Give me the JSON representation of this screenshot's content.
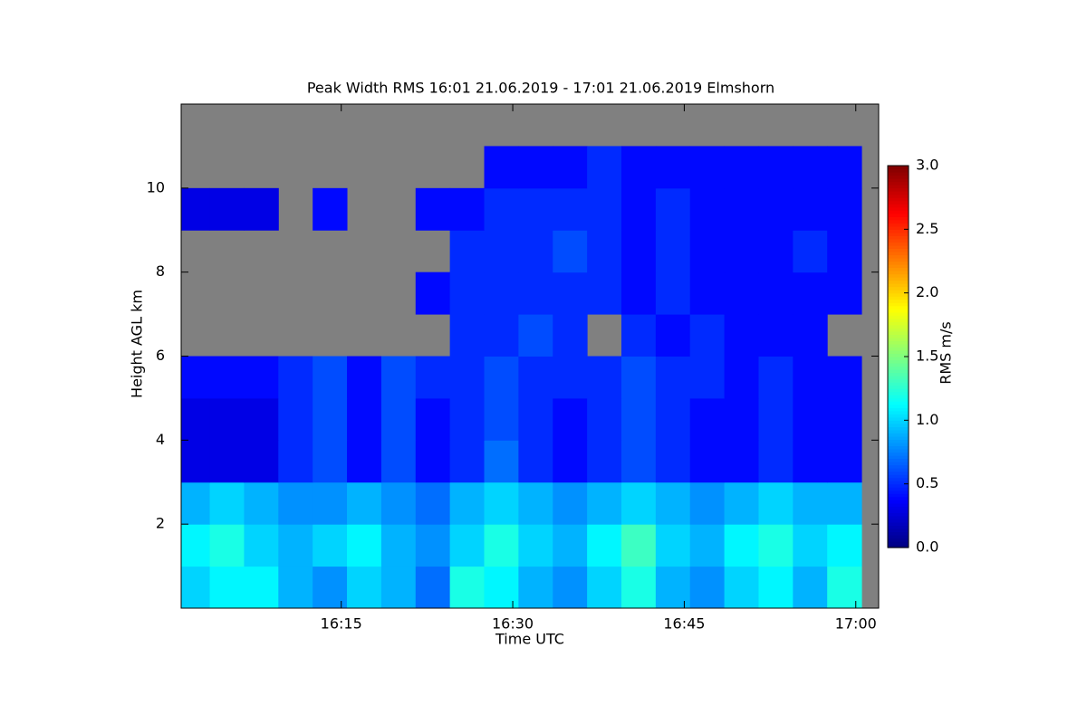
{
  "chart_data": {
    "type": "heatmap",
    "title": "Peak Width RMS   16:01 21.06.2019 - 17:01 21.06.2019 Elmshorn",
    "x_label": "Time UTC",
    "y_label": "Height AGL km",
    "colorbar_label": "RMS m/s",
    "x": [
      "16:02",
      "16:05",
      "16:08",
      "16:11",
      "16:14",
      "16:17",
      "16:20",
      "16:23",
      "16:26",
      "16:29",
      "16:32",
      "16:35",
      "16:38",
      "16:41",
      "16:44",
      "16:47",
      "16:50",
      "16:53",
      "16:56",
      "16:59"
    ],
    "y": [
      0.5,
      1.5,
      2.5,
      3.5,
      4.5,
      5.5,
      6.5,
      7.5,
      8.5,
      9.5,
      10.5,
      11.5
    ],
    "z": [
      [
        1.0,
        1.1,
        1.1,
        0.9,
        0.8,
        1.0,
        0.9,
        0.7,
        1.2,
        1.1,
        0.9,
        0.8,
        1.0,
        1.2,
        0.9,
        0.8,
        1.0,
        1.1,
        0.9,
        1.2
      ],
      [
        1.1,
        1.2,
        1.0,
        0.9,
        1.0,
        1.1,
        0.9,
        0.8,
        1.0,
        1.2,
        1.0,
        0.9,
        1.1,
        1.3,
        1.0,
        0.9,
        1.1,
        1.2,
        1.0,
        1.1
      ],
      [
        0.9,
        1.0,
        0.9,
        0.8,
        0.8,
        0.9,
        0.8,
        0.7,
        0.9,
        1.0,
        0.9,
        0.8,
        0.9,
        1.0,
        0.9,
        0.8,
        0.9,
        1.0,
        0.9,
        0.9
      ],
      [
        0.3,
        0.3,
        0.3,
        0.5,
        0.6,
        0.4,
        0.6,
        0.4,
        0.5,
        0.7,
        0.5,
        0.4,
        0.5,
        0.6,
        0.5,
        0.4,
        0.4,
        0.5,
        0.4,
        0.4
      ],
      [
        0.3,
        0.3,
        0.3,
        0.5,
        0.6,
        0.4,
        0.6,
        0.4,
        0.5,
        0.6,
        0.5,
        0.4,
        0.5,
        0.6,
        0.5,
        0.4,
        0.4,
        0.5,
        0.4,
        0.4
      ],
      [
        0.4,
        0.4,
        0.4,
        0.5,
        0.6,
        0.4,
        0.6,
        0.5,
        0.5,
        0.6,
        0.5,
        0.5,
        0.5,
        0.6,
        0.5,
        0.5,
        0.4,
        0.5,
        0.4,
        0.4
      ],
      [
        null,
        null,
        null,
        null,
        null,
        null,
        null,
        null,
        0.5,
        0.5,
        0.6,
        0.5,
        null,
        0.5,
        0.4,
        0.5,
        0.4,
        0.4,
        0.4,
        null
      ],
      [
        null,
        null,
        null,
        null,
        null,
        null,
        null,
        0.4,
        0.5,
        0.5,
        0.5,
        0.5,
        0.5,
        0.4,
        0.5,
        0.4,
        0.4,
        0.4,
        0.4,
        0.4
      ],
      [
        null,
        null,
        null,
        null,
        null,
        null,
        null,
        null,
        0.5,
        0.5,
        0.5,
        0.6,
        0.5,
        0.4,
        0.5,
        0.4,
        0.4,
        0.4,
        0.5,
        0.4
      ],
      [
        0.3,
        0.3,
        0.3,
        null,
        0.4,
        null,
        null,
        0.4,
        0.4,
        0.5,
        0.5,
        0.5,
        0.5,
        0.4,
        0.5,
        0.4,
        0.4,
        0.4,
        0.4,
        0.4
      ],
      [
        null,
        null,
        null,
        null,
        null,
        null,
        null,
        null,
        null,
        0.4,
        0.4,
        0.4,
        0.5,
        0.4,
        0.4,
        0.4,
        0.4,
        0.4,
        0.4,
        0.4
      ],
      [
        null,
        null,
        null,
        null,
        null,
        null,
        null,
        null,
        null,
        null,
        null,
        null,
        null,
        null,
        null,
        null,
        null,
        null,
        null,
        null
      ]
    ],
    "xlim": [
      "16:01",
      "17:02"
    ],
    "xticks": [
      "16:15",
      "16:30",
      "16:45",
      "17:00"
    ],
    "ylim": [
      0,
      12
    ],
    "yticks": [
      2,
      4,
      6,
      8,
      10
    ],
    "zlim": [
      0,
      3
    ],
    "zticks": [
      {
        "value": 0,
        "label": "0.0"
      },
      {
        "value": 0.5,
        "label": "0.5"
      },
      {
        "value": 1,
        "label": "1.0"
      },
      {
        "value": 1.5,
        "label": "1.5"
      },
      {
        "value": 2,
        "label": "2.0"
      },
      {
        "value": 2.5,
        "label": "2.5"
      },
      {
        "value": 3,
        "label": "3.0"
      }
    ],
    "colormap": "jet",
    "missing_color": "#808080"
  }
}
